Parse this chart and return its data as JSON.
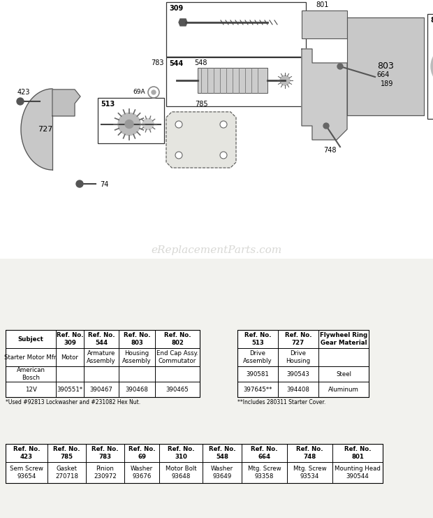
{
  "bg_color": "#f0f0eb",
  "watermark": "eReplacementParts.com",
  "table1_headers": [
    "Subject",
    "Ref. No.\n309",
    "Ref. No.\n544",
    "Ref. No.\n803",
    "Ref. No.\n802"
  ],
  "table1_data": [
    [
      "Starter Motor Mfr.",
      "Motor",
      "Armature\nAssembly",
      "Housing\nAssembly",
      "End Cap Assy.\nCommutator"
    ],
    [
      "American\nBosch",
      "",
      "",
      "",
      ""
    ],
    [
      "12V",
      "390551*",
      "390467",
      "390468",
      "390465"
    ]
  ],
  "table1_note": "*Used #92813 Lockwasher and #231082 Hex Nut.",
  "table2_headers": [
    "Ref. No.\n513",
    "Ref. No.\n727",
    "Flywheel Ring\nGear Material"
  ],
  "table2_data": [
    [
      "Drive\nAssembly",
      "Drive\nHousing",
      ""
    ],
    [
      "390581",
      "390543",
      "Steel"
    ],
    [
      "397645**",
      "394408",
      "Aluminum"
    ]
  ],
  "table2_note": "**Includes 280311 Starter Cover.",
  "table3_headers": [
    "Ref. No.\n423",
    "Ref. No.\n785",
    "Ref. No.\n783",
    "Ref. No.\n69",
    "Ref. No.\n310",
    "Ref. No.\n548",
    "Ref. No.\n664",
    "Ref. No.\n748",
    "Ref. No.\n801"
  ],
  "table3_data": [
    [
      "Sem Screw\n93654",
      "Gasket\n270718",
      "Pinion\n230972",
      "Washer\n93676",
      "Motor Bolt\n93648",
      "Washer\n93649",
      "Mtg. Screw\n93358",
      "Mtg. Screw\n93534",
      "Mounting Head\n390544"
    ]
  ]
}
